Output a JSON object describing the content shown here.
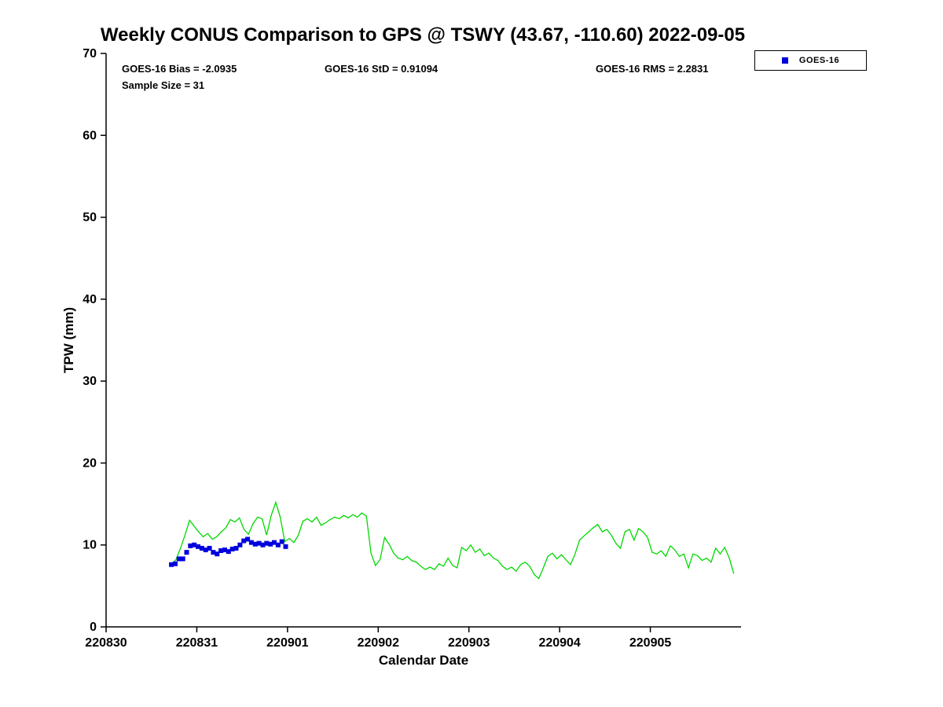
{
  "chart_data": {
    "type": "line",
    "title": "Weekly CONUS Comparison to GPS @ TSWY (43.67, -110.60) 2022-09-05",
    "xlabel": "Calendar Date",
    "ylabel": "TPW (mm)",
    "xlim": [
      0,
      7
    ],
    "ylim": [
      0,
      70
    ],
    "grid": false,
    "xticks": [
      0,
      1,
      2,
      3,
      4,
      5,
      6
    ],
    "xtick_labels": [
      "220830",
      "220831",
      "220901",
      "220902",
      "220903",
      "220904",
      "220905"
    ],
    "yticks": [
      0,
      10,
      20,
      30,
      40,
      50,
      60,
      70
    ],
    "annotations": [
      "GOES-16 Bias = -2.0935",
      "GOES-16 StD = 0.91094",
      "GOES-16 RMS = 2.2831",
      "Sample Size = 31"
    ],
    "stats": {
      "bias": -2.0935,
      "std": 0.91094,
      "rms": 2.2831,
      "sample_size": 31
    },
    "legend": {
      "position": "top-right",
      "entries": [
        {
          "label": "GOES-16",
          "color": "#0000dd",
          "marker": "square"
        }
      ]
    },
    "series": [
      {
        "name": "GPS",
        "type": "line",
        "color": "#00d900",
        "x_start": 0.72,
        "x_step": 0.05,
        "values": [
          7.6,
          8.2,
          9.6,
          11.2,
          13.0,
          12.3,
          11.6,
          11.0,
          11.4,
          10.7,
          11.0,
          11.6,
          12.1,
          13.1,
          12.8,
          13.3,
          11.9,
          11.3,
          12.6,
          13.4,
          13.2,
          11.2,
          13.6,
          15.2,
          13.4,
          10.4,
          10.8,
          10.3,
          11.2,
          12.9,
          13.2,
          12.8,
          13.4,
          12.4,
          12.7,
          13.1,
          13.4,
          13.2,
          13.6,
          13.3,
          13.7,
          13.4,
          13.9,
          13.5,
          9.0,
          7.5,
          8.2,
          10.9,
          10.1,
          9.0,
          8.4,
          8.2,
          8.6,
          8.1,
          7.9,
          7.4,
          7.0,
          7.3,
          7.0,
          7.7,
          7.4,
          8.4,
          7.5,
          7.2,
          9.7,
          9.3,
          10.0,
          9.1,
          9.5,
          8.7,
          9.0,
          8.4,
          8.1,
          7.4,
          7.0,
          7.3,
          6.8,
          7.6,
          7.9,
          7.4,
          6.4,
          5.9,
          7.2,
          8.6,
          9.0,
          8.3,
          8.8,
          8.2,
          7.6,
          8.9,
          10.6,
          11.1,
          11.6,
          12.1,
          12.5,
          11.6,
          11.9,
          11.2,
          10.2,
          9.6,
          11.6,
          11.9,
          10.6,
          12.0,
          11.6,
          10.9,
          9.1,
          8.9,
          9.3,
          8.6,
          9.9,
          9.4,
          8.6,
          8.9,
          7.2,
          8.9,
          8.7,
          8.1,
          8.4,
          7.9,
          9.6,
          8.9,
          9.7,
          8.4,
          6.5
        ]
      },
      {
        "name": "GOES-16",
        "type": "scatter",
        "marker": "square",
        "color": "#0000dd",
        "x_start": 0.72,
        "x_step": 0.042,
        "values": [
          7.6,
          7.7,
          8.3,
          8.3,
          9.1,
          9.9,
          10.0,
          9.8,
          9.6,
          9.4,
          9.6,
          9.1,
          8.9,
          9.3,
          9.4,
          9.2,
          9.5,
          9.6,
          10.0,
          10.5,
          10.7,
          10.3,
          10.1,
          10.2,
          10.0,
          10.2,
          10.1,
          10.3,
          10.0,
          10.4,
          9.8
        ]
      }
    ]
  }
}
